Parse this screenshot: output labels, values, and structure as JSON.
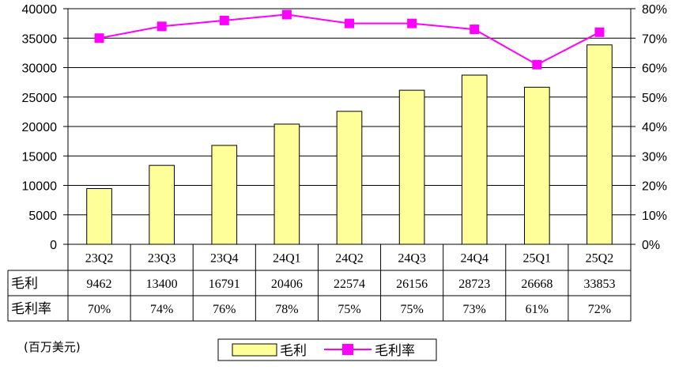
{
  "chart_data": {
    "type": "bar+line",
    "categories": [
      "23Q2",
      "23Q3",
      "23Q4",
      "24Q1",
      "24Q2",
      "24Q3",
      "24Q4",
      "25Q1",
      "25Q2"
    ],
    "series": [
      {
        "name": "毛利",
        "type": "bar",
        "axis": "left",
        "values": [
          9462,
          13400,
          16791,
          20406,
          22574,
          26156,
          28723,
          26668,
          33853
        ],
        "color": "#ffff99",
        "stroke": "#000000"
      },
      {
        "name": "毛利率",
        "type": "line",
        "axis": "right",
        "values": [
          70,
          74,
          76,
          78,
          75,
          75,
          73,
          61,
          72
        ],
        "color": "#ff00ff"
      }
    ],
    "ylim_left": [
      0,
      40000
    ],
    "yticks_left": [
      "0",
      "5000",
      "10000",
      "15000",
      "20000",
      "25000",
      "30000",
      "35000",
      "40000"
    ],
    "ylim_right": [
      0,
      80
    ],
    "yticks_right": [
      "0%",
      "10%",
      "20%",
      "30%",
      "40%",
      "50%",
      "60%",
      "70%",
      "80%"
    ],
    "grid": "horizontal",
    "legend_position": "bottom"
  },
  "table": {
    "row_headers": [
      "毛利",
      "毛利率"
    ],
    "rows": [
      [
        "9462",
        "13400",
        "16791",
        "20406",
        "22574",
        "26156",
        "28723",
        "26668",
        "33853"
      ],
      [
        "70%",
        "74%",
        "76%",
        "78%",
        "75%",
        "75%",
        "73%",
        "61%",
        "72%"
      ]
    ]
  },
  "unit_note": "(百万美元)",
  "legend": [
    "毛利",
    "毛利率"
  ]
}
